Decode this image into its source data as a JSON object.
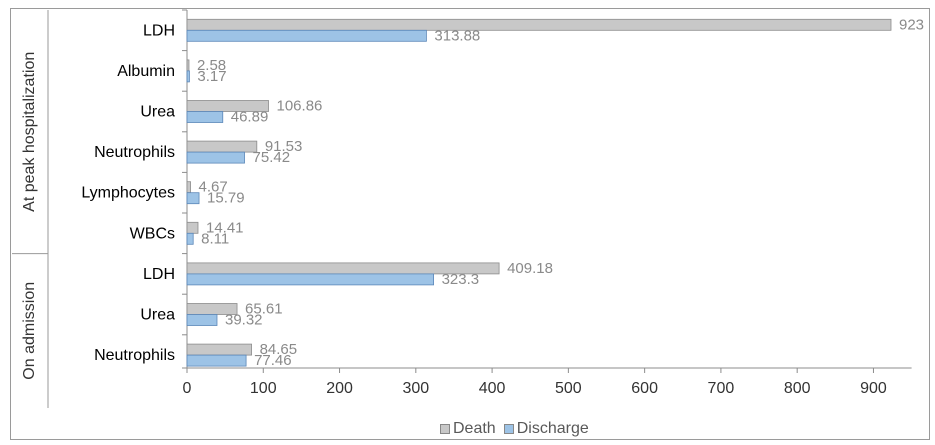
{
  "chart_data": {
    "type": "bar",
    "orientation": "horizontal",
    "groups": [
      {
        "label": "At peak hospitalization",
        "categories": [
          "LDH",
          "Albumin",
          "Urea",
          "Neutrophils",
          "Lymphocytes",
          "WBCs"
        ],
        "values_text": {
          "Death": [
            "923",
            "2.58",
            "106.86",
            "91.53",
            "4.67",
            "14.41"
          ],
          "Discharge": [
            "313.88",
            "3.17",
            "46.89",
            "75.42",
            "15.79",
            "8.11"
          ]
        }
      },
      {
        "label": "On admission",
        "categories": [
          "LDH",
          "Urea",
          "Neutrophils"
        ],
        "values_text": {
          "Death": [
            "409.18",
            "65.61",
            "84.65"
          ],
          "Discharge": [
            "323.3",
            "39.32",
            "77.46"
          ]
        }
      }
    ],
    "series": [
      {
        "name": "Death",
        "color": "#c8c8c8",
        "values": [
          923,
          2.58,
          106.86,
          91.53,
          4.67,
          14.41,
          409.18,
          65.61,
          84.65
        ]
      },
      {
        "name": "Discharge",
        "color": "#9dc3e6",
        "values": [
          313.88,
          3.17,
          46.89,
          75.42,
          15.79,
          8.11,
          323.3,
          39.32,
          77.46
        ]
      }
    ],
    "xlim": [
      0,
      950
    ],
    "xticks": [
      "0",
      "100",
      "200",
      "300",
      "400",
      "500",
      "600",
      "700",
      "800",
      "900"
    ],
    "grid": false,
    "legend_position": "bottom-center"
  }
}
